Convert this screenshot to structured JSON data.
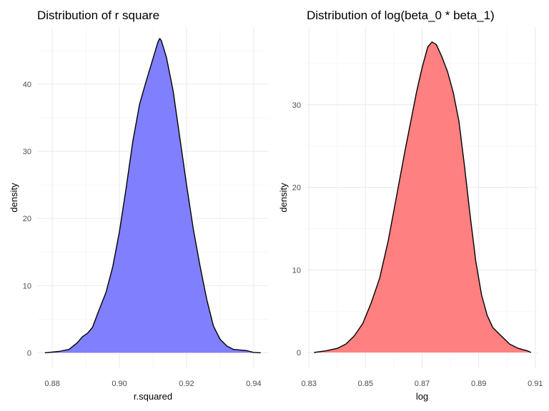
{
  "chart_data": [
    {
      "type": "area",
      "title": "Distribution of r square",
      "xlabel": "r.squared",
      "ylabel": "density",
      "fill": "#8080ff",
      "xlim": [
        0.8755,
        0.9445
      ],
      "ylim": [
        -2.3,
        48.5
      ],
      "x_ticks": [
        0.88,
        0.9,
        0.92,
        0.94
      ],
      "x_tick_labels": [
        "0.88",
        "0.90",
        "0.92",
        "0.94"
      ],
      "y_ticks": [
        0,
        10,
        20,
        30,
        40
      ],
      "y_tick_labels": [
        "0",
        "10",
        "20",
        "30",
        "40"
      ],
      "grid": true,
      "points": [
        [
          0.8778,
          0.0
        ],
        [
          0.882,
          0.2
        ],
        [
          0.885,
          0.5
        ],
        [
          0.8875,
          1.5
        ],
        [
          0.889,
          2.4
        ],
        [
          0.8905,
          2.9
        ],
        [
          0.892,
          3.8
        ],
        [
          0.8935,
          5.8
        ],
        [
          0.896,
          9.0
        ],
        [
          0.898,
          12.8
        ],
        [
          0.9,
          18.0
        ],
        [
          0.902,
          24.5
        ],
        [
          0.904,
          31.5
        ],
        [
          0.906,
          37.0
        ],
        [
          0.908,
          40.5
        ],
        [
          0.91,
          43.8
        ],
        [
          0.9115,
          46.3
        ],
        [
          0.912,
          46.8
        ],
        [
          0.9125,
          46.5
        ],
        [
          0.914,
          44.0
        ],
        [
          0.916,
          39.0
        ],
        [
          0.918,
          32.0
        ],
        [
          0.92,
          25.0
        ],
        [
          0.922,
          18.5
        ],
        [
          0.924,
          13.0
        ],
        [
          0.926,
          8.0
        ],
        [
          0.928,
          4.0
        ],
        [
          0.93,
          2.0
        ],
        [
          0.932,
          1.0
        ],
        [
          0.934,
          0.5
        ],
        [
          0.936,
          0.4
        ],
        [
          0.938,
          0.3
        ],
        [
          0.94,
          0.05
        ],
        [
          0.9421,
          0.0
        ]
      ]
    },
    {
      "type": "area",
      "title": "Distribution of log(beta_0 * beta_1)",
      "xlabel": "log",
      "ylabel": "density",
      "fill": "#ff8080",
      "xlim": [
        0.8292,
        0.9108
      ],
      "ylim": [
        -1.9,
        39.4
      ],
      "x_ticks": [
        0.83,
        0.85,
        0.87,
        0.89,
        0.91
      ],
      "x_tick_labels": [
        "0.83",
        "0.85",
        "0.87",
        "0.89",
        "0.91"
      ],
      "y_ticks": [
        0,
        10,
        20,
        30
      ],
      "y_tick_labels": [
        "0",
        "10",
        "20",
        "30"
      ],
      "grid": true,
      "points": [
        [
          0.8318,
          0.0
        ],
        [
          0.836,
          0.2
        ],
        [
          0.84,
          0.5
        ],
        [
          0.843,
          1.0
        ],
        [
          0.846,
          2.0
        ],
        [
          0.849,
          3.5
        ],
        [
          0.852,
          6.0
        ],
        [
          0.855,
          9.0
        ],
        [
          0.858,
          13.5
        ],
        [
          0.861,
          19.0
        ],
        [
          0.864,
          24.5
        ],
        [
          0.866,
          28.0
        ],
        [
          0.868,
          31.5
        ],
        [
          0.87,
          34.5
        ],
        [
          0.872,
          37.0
        ],
        [
          0.8735,
          37.6
        ],
        [
          0.875,
          37.3
        ],
        [
          0.877,
          35.8
        ],
        [
          0.879,
          34.0
        ],
        [
          0.881,
          31.5
        ],
        [
          0.883,
          28.0
        ],
        [
          0.885,
          22.5
        ],
        [
          0.887,
          16.5
        ],
        [
          0.889,
          11.0
        ],
        [
          0.891,
          7.0
        ],
        [
          0.893,
          4.5
        ],
        [
          0.895,
          3.0
        ],
        [
          0.898,
          2.0
        ],
        [
          0.901,
          1.0
        ],
        [
          0.904,
          0.5
        ],
        [
          0.9072,
          0.2
        ],
        [
          0.9085,
          0.0
        ]
      ]
    }
  ]
}
